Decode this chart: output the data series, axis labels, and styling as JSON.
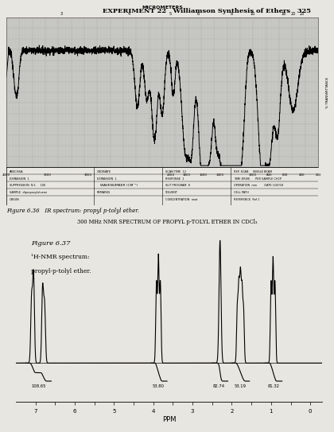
{
  "page_title": "EXPERIMENT 22   Williamson Synthesis of Ethers   325",
  "bg_color": "#c8c8c4",
  "paper_color": "#e8e6e0",
  "grid_color": "#b0aea8",
  "ir_title": "MICROMETERS",
  "ir_caption": "Figure 6.36   IR spectrum: propyl p-tolyl ether.",
  "nmr_title": "300 MHz NMR SPECTRUM OF PROPYL p-TOLYL ETHER IN CDCl₃",
  "nmr_caption_title": "Figure 6.37",
  "nmr_caption_line2": "¹H-NMR spectrum:",
  "nmr_caption_line3": "propyl-p-tolyl ether.",
  "nmr_xlabel": "PPM",
  "nmr_integral_labels": [
    "108.65",
    "53.80",
    "82.74",
    "53.19",
    "81.32"
  ]
}
